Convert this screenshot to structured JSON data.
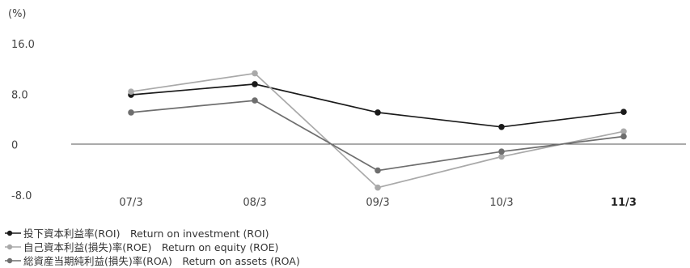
{
  "chart_data": {
    "type": "line",
    "unit_label": "(%)",
    "categories": [
      "07/3",
      "08/3",
      "09/3",
      "10/3",
      "11/3"
    ],
    "highlight_category": "11/3",
    "yticks": [
      "16.0",
      "8.0",
      "0",
      "-8.0"
    ],
    "ytick_values": [
      16,
      8,
      0,
      -8
    ],
    "ylim": [
      -8,
      16
    ],
    "grid": false,
    "legend_position": "bottom-left",
    "series": [
      {
        "name": "投下資本利益率(ROI)　Return on investment (ROI)",
        "color": "#1a1a1a",
        "values": [
          7.9,
          9.6,
          5.1,
          2.8,
          5.2
        ]
      },
      {
        "name": "自己資本利益(損失)率(ROE)　Return on equity (ROE)",
        "color": "#a9a9a9",
        "values": [
          8.4,
          11.3,
          -6.8,
          -1.9,
          2.1
        ]
      },
      {
        "name": "総資産当期純利益(損失)率(ROA)　Return on assets (ROA)",
        "color": "#6e6e6e",
        "values": [
          5.1,
          7.0,
          -4.1,
          -1.1,
          1.3
        ]
      }
    ]
  }
}
